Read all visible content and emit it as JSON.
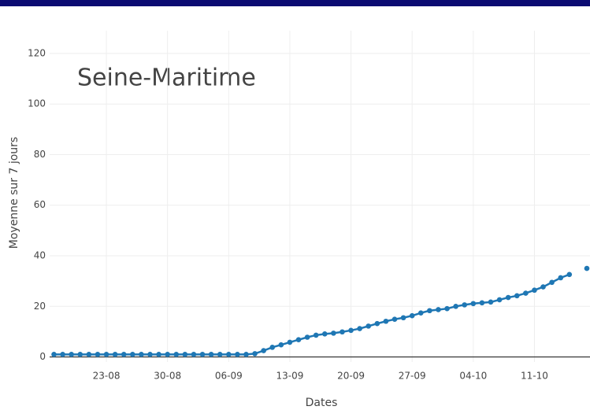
{
  "chart_data": {
    "type": "line",
    "title": "Seine-Maritime",
    "x_label": "Dates",
    "y_label": "Moyenne sur 7 jours",
    "categories": [
      null,
      null,
      null,
      null,
      null,
      null,
      "23-08",
      null,
      null,
      null,
      null,
      null,
      null,
      "30-08",
      null,
      null,
      null,
      null,
      null,
      null,
      "06-09",
      null,
      null,
      null,
      null,
      null,
      null,
      "13-09",
      null,
      null,
      null,
      null,
      null,
      null,
      "20-09",
      null,
      null,
      null,
      null,
      null,
      null,
      "27-09",
      null,
      null,
      null,
      null,
      null,
      null,
      "04-10",
      null,
      null,
      null,
      null,
      null,
      null,
      "11-10",
      null,
      null,
      null,
      null,
      null,
      null
    ],
    "series": [
      {
        "color": "#1f77b4",
        "values": [
          1,
          1,
          1,
          1,
          1,
          1,
          1,
          1,
          1,
          1,
          1,
          1,
          1,
          1,
          1,
          1,
          1,
          1,
          1,
          1,
          1,
          1,
          1,
          1.3,
          2.5,
          3.8,
          4.8,
          5.8,
          6.8,
          7.8,
          8.6,
          9.1,
          9.4,
          9.9,
          10.5,
          11.2,
          12.2,
          13.2,
          14.1,
          14.9,
          15.5,
          16.3,
          17.4,
          18.3,
          18.7,
          19.1,
          20,
          20.6,
          21.1,
          21.4,
          21.7,
          22.6,
          23.5,
          24.2,
          25.2,
          26.4,
          27.7,
          29.5,
          31.3,
          32.6,
          null,
          35
        ]
      }
    ],
    "ylim": [
      -2,
      129
    ],
    "yticks": [
      0,
      20,
      40,
      60,
      80,
      100,
      120
    ],
    "grid": true
  }
}
